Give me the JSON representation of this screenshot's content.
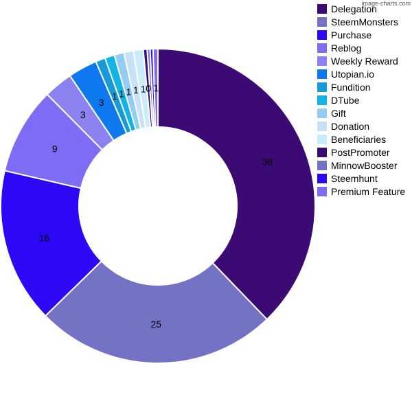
{
  "watermark": "image-charts.com",
  "chart_data": {
    "type": "pie",
    "donut": true,
    "legend_position": "right",
    "categories": [
      "Delegation",
      "SteemMonsters",
      "Purchase",
      "Reblog",
      "Weekly Reward",
      "Utopian.io",
      "Fundition",
      "DTube",
      "Gift",
      "Donation",
      "Beneficiaries",
      "PostPromoter",
      "MinnowBooster",
      "Steemhunt",
      "Premium Feature"
    ],
    "values": [
      38,
      25,
      16,
      9,
      3,
      3,
      1,
      1,
      1,
      1,
      1,
      0.4,
      0.3,
      0.3,
      0.5
    ],
    "data_labels": [
      "38",
      "25",
      "16",
      "9",
      "3",
      "3",
      "1",
      "1",
      "1",
      "1",
      "1",
      "0",
      "",
      "",
      "1"
    ],
    "colors": [
      "#3b0a72",
      "#7472c4",
      "#2d08f5",
      "#7e6cf5",
      "#8b82f2",
      "#0e79ee",
      "#169ad8",
      "#12b4e6",
      "#93cdf4",
      "#c7e1f7",
      "#c9ebfb",
      "#3b0a72",
      "#7472c4",
      "#2d08f5",
      "#7e6cf5"
    ]
  }
}
